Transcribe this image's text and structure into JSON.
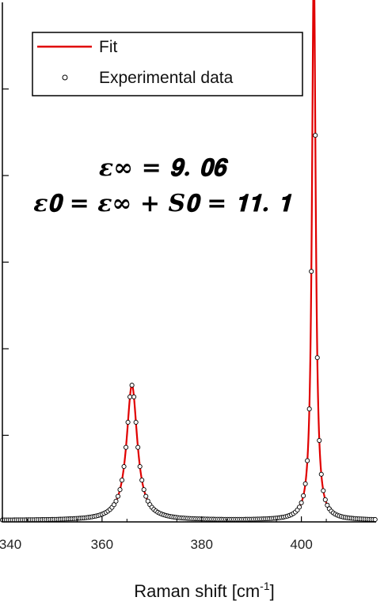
{
  "chart_data": {
    "type": "line",
    "title": "",
    "xlabel": "Raman shift [cm",
    "xlabel_sup": "-1",
    "xlabel_end": "]",
    "ylabel": "",
    "xlim": [
      340,
      415
    ],
    "ylim": [
      0,
      1.0
    ],
    "xticks": [
      340,
      360,
      380,
      400
    ],
    "xtick_labels": [
      "340",
      "360",
      "380",
      "400"
    ],
    "yticks": [
      0,
      0.1667,
      0.3333,
      0.5,
      0.6667,
      0.8333
    ],
    "ytick_labels_shown": false,
    "grid": false,
    "legend_position": "top-left",
    "series": [
      {
        "name": "Fit",
        "kind": "line",
        "color": "#e00000",
        "model": "lorentzian-sum",
        "baseline": 0.003,
        "peaks": [
          {
            "center": 366.0,
            "hwhm": 1.3,
            "height": 0.26
          },
          {
            "center": 402.5,
            "hwhm": 0.45,
            "height": 1.07
          }
        ]
      },
      {
        "name": "Experimental data",
        "kind": "scatter",
        "marker": "open-circle",
        "color": "#000000",
        "x_start": 340,
        "x_end": 415,
        "x_step": 0.4
      }
    ],
    "annotations": [
      {
        "text": "𝜺∞ = 𝟗. 𝟎𝟔",
        "x": 374,
        "y": 0.83
      },
      {
        "text": "𝜺𝟎 = 𝜺∞ + 𝑺𝟎 = 𝟏𝟏. 𝟏",
        "x": 360,
        "y": 0.745
      }
    ]
  }
}
